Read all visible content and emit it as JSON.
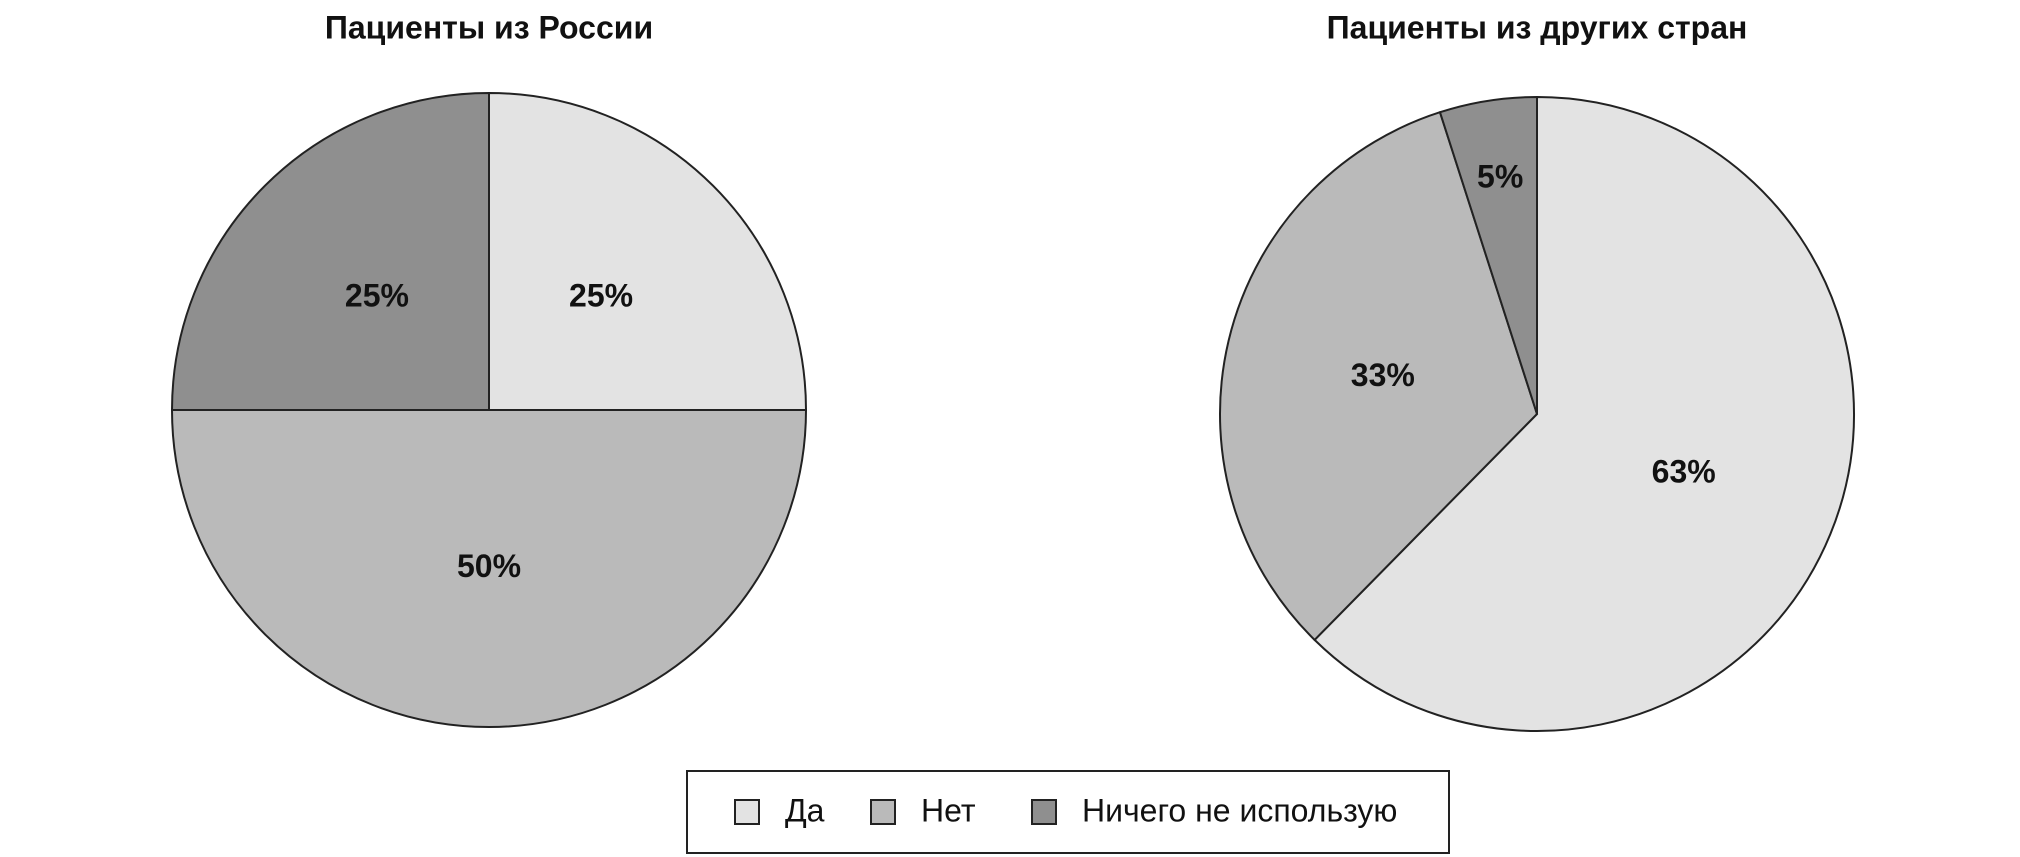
{
  "chart_data": [
    {
      "type": "pie",
      "title": "Пациенты из России",
      "categories": [
        "Да",
        "Нет",
        "Ничего не использую"
      ],
      "values": [
        25,
        50,
        25
      ],
      "value_labels": [
        "25%",
        "50%",
        "25%"
      ],
      "colors": [
        "#e3e3e3",
        "#bababa",
        "#8f8f8f"
      ]
    },
    {
      "type": "pie",
      "title": "Пациенты из других стран",
      "categories": [
        "Да",
        "Нет",
        "Ничего не использую"
      ],
      "values": [
        63,
        33,
        5
      ],
      "value_labels": [
        "63%",
        "33%",
        "5%"
      ],
      "colors": [
        "#e3e3e3",
        "#bababa",
        "#8f8f8f"
      ]
    }
  ]
}
